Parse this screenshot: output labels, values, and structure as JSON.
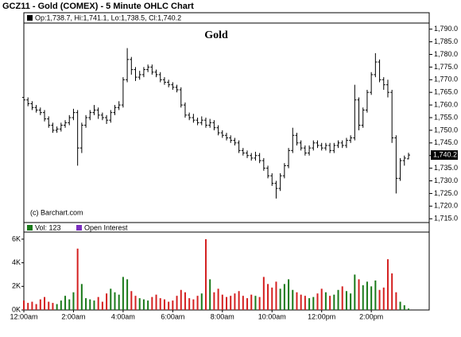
{
  "chart_data": {
    "type": "ohlc",
    "title": "GCZ11 - Gold (COMEX) - 5 Minute OHLC Chart",
    "legend_text": "Op:1,738.7, Hi:1,741.1, Lo:1,738.5, Cl:1,740.2",
    "chart_label": "Gold",
    "credit": "(c) Barchart.com",
    "last_price_label": "1,740.2",
    "volume_legend": "Vol: 123",
    "open_interest_legend": "Open Interest",
    "up_color": "#1a7a1a",
    "down_color": "#d42020",
    "bar_color": "#000000",
    "oi_color": "#7b2fbf",
    "x": [
      0,
      10,
      20,
      30,
      40,
      50,
      60,
      70,
      80,
      90,
      100,
      110,
      120,
      130,
      140,
      150,
      160,
      170,
      180,
      190,
      200,
      210,
      220,
      230,
      240,
      250,
      260,
      270,
      280,
      290,
      300,
      310,
      320,
      330,
      340,
      350,
      360,
      370,
      380,
      390,
      400,
      410,
      420,
      430,
      440,
      450,
      460,
      470,
      480,
      490,
      500,
      510,
      520,
      530,
      540,
      550,
      560,
      570,
      580,
      590,
      600,
      610,
      620,
      630,
      640,
      650,
      660,
      670,
      680,
      690,
      700,
      710,
      720,
      730,
      740,
      750,
      760,
      770,
      780,
      790,
      800,
      810,
      820,
      830,
      840,
      850,
      860,
      870,
      880,
      890,
      900,
      910,
      920,
      930
    ],
    "ohlc": [
      [
        1763.0,
        1764.5,
        1760.5,
        1762.0
      ],
      [
        1762.0,
        1763.0,
        1759.5,
        1760.5
      ],
      [
        1760.5,
        1761.5,
        1758.0,
        1759.0
      ],
      [
        1759.0,
        1760.0,
        1757.0,
        1758.0
      ],
      [
        1758.0,
        1759.0,
        1756.0,
        1757.0
      ],
      [
        1757.0,
        1758.0,
        1753.5,
        1754.5
      ],
      [
        1754.5,
        1755.5,
        1751.0,
        1752.0
      ],
      [
        1752.0,
        1753.0,
        1749.0,
        1750.0
      ],
      [
        1750.0,
        1751.5,
        1749.0,
        1750.5
      ],
      [
        1750.5,
        1753.0,
        1749.5,
        1752.0
      ],
      [
        1752.0,
        1754.0,
        1751.0,
        1753.0
      ],
      [
        1753.0,
        1756.0,
        1752.0,
        1755.0
      ],
      [
        1755.0,
        1758.5,
        1754.0,
        1757.0
      ],
      [
        1757.0,
        1758.0,
        1736.0,
        1743.0
      ],
      [
        1743.0,
        1753.0,
        1741.0,
        1752.0
      ],
      [
        1752.0,
        1756.0,
        1751.0,
        1755.0
      ],
      [
        1755.0,
        1758.0,
        1754.0,
        1757.0
      ],
      [
        1757.0,
        1760.0,
        1756.0,
        1758.0
      ],
      [
        1758.0,
        1759.0,
        1754.5,
        1756.0
      ],
      [
        1756.0,
        1757.0,
        1754.0,
        1755.0
      ],
      [
        1755.0,
        1756.0,
        1752.5,
        1754.0
      ],
      [
        1754.0,
        1758.0,
        1753.0,
        1757.0
      ],
      [
        1757.0,
        1760.0,
        1756.0,
        1759.0
      ],
      [
        1759.0,
        1761.5,
        1758.0,
        1760.0
      ],
      [
        1760.0,
        1771.0,
        1759.0,
        1770.0
      ],
      [
        1770.0,
        1782.5,
        1769.0,
        1778.0
      ],
      [
        1778.0,
        1779.0,
        1772.0,
        1774.0
      ],
      [
        1774.0,
        1775.0,
        1769.5,
        1771.0
      ],
      [
        1771.0,
        1773.5,
        1770.0,
        1772.0
      ],
      [
        1772.0,
        1775.0,
        1771.0,
        1774.0
      ],
      [
        1774.0,
        1776.0,
        1773.0,
        1775.0
      ],
      [
        1775.0,
        1776.0,
        1772.0,
        1773.0
      ],
      [
        1773.0,
        1774.0,
        1771.0,
        1772.0
      ],
      [
        1772.0,
        1773.0,
        1769.0,
        1770.0
      ],
      [
        1770.0,
        1771.0,
        1768.0,
        1769.0
      ],
      [
        1769.0,
        1770.0,
        1767.0,
        1768.0
      ],
      [
        1768.0,
        1769.0,
        1766.0,
        1767.0
      ],
      [
        1767.0,
        1768.0,
        1765.0,
        1766.0
      ],
      [
        1766.0,
        1767.0,
        1759.0,
        1760.0
      ],
      [
        1760.0,
        1761.0,
        1755.0,
        1756.0
      ],
      [
        1756.0,
        1757.0,
        1754.0,
        1755.0
      ],
      [
        1755.0,
        1756.5,
        1753.0,
        1754.0
      ],
      [
        1754.0,
        1755.0,
        1752.0,
        1753.0
      ],
      [
        1753.0,
        1755.5,
        1752.0,
        1754.0
      ],
      [
        1754.0,
        1755.0,
        1751.0,
        1752.0
      ],
      [
        1752.0,
        1754.5,
        1751.0,
        1753.0
      ],
      [
        1753.0,
        1754.0,
        1750.0,
        1751.0
      ],
      [
        1751.0,
        1752.0,
        1748.0,
        1749.0
      ],
      [
        1749.0,
        1750.0,
        1747.0,
        1748.0
      ],
      [
        1748.0,
        1749.0,
        1746.0,
        1747.0
      ],
      [
        1747.0,
        1748.0,
        1745.0,
        1746.0
      ],
      [
        1746.0,
        1747.0,
        1744.0,
        1745.0
      ],
      [
        1745.0,
        1746.0,
        1741.0,
        1742.0
      ],
      [
        1742.0,
        1743.0,
        1740.0,
        1741.0
      ],
      [
        1741.0,
        1742.0,
        1739.0,
        1740.0
      ],
      [
        1740.0,
        1741.0,
        1738.0,
        1739.0
      ],
      [
        1739.0,
        1741.5,
        1738.0,
        1740.0
      ],
      [
        1740.0,
        1741.0,
        1737.0,
        1738.0
      ],
      [
        1738.0,
        1739.0,
        1734.0,
        1735.0
      ],
      [
        1735.0,
        1736.0,
        1731.0,
        1732.0
      ],
      [
        1732.0,
        1733.0,
        1728.0,
        1729.0
      ],
      [
        1729.0,
        1730.0,
        1723.0,
        1727.0
      ],
      [
        1727.0,
        1733.0,
        1726.0,
        1732.0
      ],
      [
        1732.0,
        1737.0,
        1731.0,
        1736.0
      ],
      [
        1736.0,
        1743.0,
        1735.0,
        1742.0
      ],
      [
        1742.0,
        1751.0,
        1741.0,
        1748.0
      ],
      [
        1748.0,
        1749.0,
        1744.0,
        1745.0
      ],
      [
        1745.0,
        1746.0,
        1742.0,
        1743.0
      ],
      [
        1743.0,
        1744.0,
        1740.0,
        1741.0
      ],
      [
        1741.0,
        1744.0,
        1740.0,
        1743.0
      ],
      [
        1743.0,
        1746.0,
        1742.0,
        1745.0
      ],
      [
        1745.0,
        1746.0,
        1743.0,
        1744.0
      ],
      [
        1744.0,
        1745.0,
        1742.0,
        1743.0
      ],
      [
        1743.0,
        1745.0,
        1742.0,
        1744.0
      ],
      [
        1744.0,
        1745.0,
        1741.0,
        1742.0
      ],
      [
        1742.0,
        1745.0,
        1741.0,
        1744.0
      ],
      [
        1744.0,
        1746.0,
        1743.0,
        1745.0
      ],
      [
        1745.0,
        1746.0,
        1743.0,
        1744.0
      ],
      [
        1744.0,
        1747.0,
        1743.0,
        1746.0
      ],
      [
        1746.0,
        1748.0,
        1745.0,
        1747.0
      ],
      [
        1747.0,
        1768.0,
        1746.0,
        1762.0
      ],
      [
        1762.0,
        1763.0,
        1750.0,
        1752.0
      ],
      [
        1752.0,
        1759.0,
        1751.0,
        1758.0
      ],
      [
        1758.0,
        1766.0,
        1757.0,
        1765.0
      ],
      [
        1765.0,
        1773.0,
        1764.0,
        1772.0
      ],
      [
        1772.0,
        1780.5,
        1771.0,
        1777.0
      ],
      [
        1777.0,
        1778.0,
        1769.0,
        1770.0
      ],
      [
        1770.0,
        1771.0,
        1766.0,
        1768.0
      ],
      [
        1768.0,
        1770.0,
        1763.0,
        1765.0
      ],
      [
        1765.0,
        1766.0,
        1745.0,
        1747.0
      ],
      [
        1747.0,
        1748.0,
        1725.0,
        1731.0
      ],
      [
        1731.0,
        1739.0,
        1730.0,
        1738.0
      ],
      [
        1738.0,
        1740.0,
        1736.0,
        1739.0
      ],
      [
        1738.7,
        1741.1,
        1738.5,
        1740.2
      ]
    ],
    "volume": [
      800,
      600,
      700,
      500,
      900,
      1100,
      700,
      600,
      500,
      800,
      1200,
      900,
      1500,
      5200,
      2200,
      1000,
      900,
      800,
      1100,
      700,
      1400,
      1800,
      1500,
      1300,
      2800,
      2600,
      1600,
      1200,
      1000,
      900,
      800,
      1100,
      1300,
      1000,
      900,
      700,
      800,
      1200,
      1700,
      1500,
      1000,
      900,
      1200,
      1400,
      6000,
      2600,
      1500,
      1800,
      1300,
      1100,
      1200,
      1400,
      1600,
      1200,
      1000,
      1300,
      1200,
      1100,
      2800,
      2200,
      1900,
      2400,
      1800,
      2200,
      2600,
      1700,
      1500,
      1300,
      1200,
      1000,
      1100,
      1400,
      1800,
      1500,
      1200,
      1300,
      1700,
      2000,
      1600,
      1400,
      3000,
      2600,
      2100,
      2400,
      2000,
      2500,
      1700,
      1900,
      4300,
      3100,
      1500,
      700,
      400,
      123
    ],
    "xlim": [
      0,
      980
    ],
    "xticks": [
      {
        "value": 0,
        "label": "12:00am"
      },
      {
        "value": 120,
        "label": "2:00am"
      },
      {
        "value": 240,
        "label": "4:00am"
      },
      {
        "value": 360,
        "label": "6:00am"
      },
      {
        "value": 480,
        "label": "8:00am"
      },
      {
        "value": 600,
        "label": "10:00am"
      },
      {
        "value": 720,
        "label": "12:00pm"
      },
      {
        "value": 840,
        "label": "2:00pm"
      }
    ],
    "ylim": [
      1713.5,
      1796.5
    ],
    "yticks": [
      {
        "value": 1715,
        "label": "1,715.0"
      },
      {
        "value": 1720,
        "label": "1,720.0"
      },
      {
        "value": 1725,
        "label": "1,725.0"
      },
      {
        "value": 1730,
        "label": "1,730.0"
      },
      {
        "value": 1735,
        "label": "1,735.0"
      },
      {
        "value": 1740,
        "label": "1,740.0"
      },
      {
        "value": 1745,
        "label": "1,745.0"
      },
      {
        "value": 1750,
        "label": "1,750.0"
      },
      {
        "value": 1755,
        "label": "1,755.0"
      },
      {
        "value": 1760,
        "label": "1,760.0"
      },
      {
        "value": 1765,
        "label": "1,765.0"
      },
      {
        "value": 1770,
        "label": "1,770.0"
      },
      {
        "value": 1775,
        "label": "1,775.0"
      },
      {
        "value": 1780,
        "label": "1,780.0"
      },
      {
        "value": 1785,
        "label": "1,785.0"
      },
      {
        "value": 1790,
        "label": "1,790.0"
      }
    ],
    "volume_ylim": [
      0,
      6600
    ],
    "volume_yticks": [
      {
        "value": 0,
        "label": "0K"
      },
      {
        "value": 2000,
        "label": "2K"
      },
      {
        "value": 4000,
        "label": "4K"
      },
      {
        "value": 6000,
        "label": "6K"
      }
    ]
  }
}
